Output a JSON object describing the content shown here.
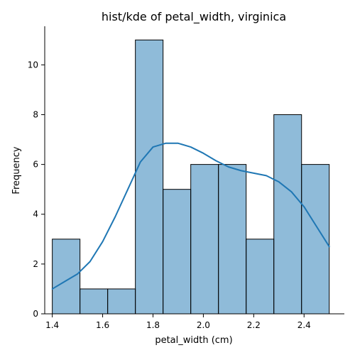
{
  "chart_data": {
    "type": "bar",
    "title": "hist/kde of petal_width, virginica",
    "xlabel": "petal_width (cm)",
    "ylabel": "Frequency",
    "xlim": [
      1.37,
      2.56
    ],
    "ylim": [
      0,
      11.55
    ],
    "grid": false,
    "x_ticks": [
      1.4,
      1.6,
      1.8,
      2.0,
      2.2,
      2.4
    ],
    "x_tick_labels": [
      "1.4",
      "1.6",
      "1.8",
      "2.0",
      "2.2",
      "2.4"
    ],
    "y_ticks": [
      0,
      2,
      4,
      6,
      8,
      10
    ],
    "y_tick_labels": [
      "0",
      "2",
      "4",
      "6",
      "8",
      "10"
    ],
    "bin_edges": [
      1.4,
      1.51,
      1.62,
      1.73,
      1.84,
      1.95,
      2.06,
      2.17,
      2.28,
      2.39,
      2.5
    ],
    "counts": [
      3,
      1,
      1,
      11,
      5,
      6,
      6,
      3,
      8,
      6
    ],
    "kde": {
      "x": [
        1.4,
        1.45,
        1.5,
        1.55,
        1.6,
        1.65,
        1.7,
        1.75,
        1.8,
        1.85,
        1.9,
        1.95,
        2.0,
        2.05,
        2.1,
        2.15,
        2.2,
        2.25,
        2.3,
        2.35,
        2.4,
        2.45,
        2.5
      ],
      "y": [
        1.0,
        1.3,
        1.6,
        2.1,
        2.9,
        3.9,
        5.0,
        6.1,
        6.7,
        6.85,
        6.85,
        6.7,
        6.45,
        6.15,
        5.9,
        5.75,
        5.65,
        5.55,
        5.3,
        4.9,
        4.3,
        3.5,
        2.7
      ]
    },
    "colors": {
      "bar": "#1f77b4",
      "kde": "#1f77b4",
      "edge": "#000000"
    }
  }
}
